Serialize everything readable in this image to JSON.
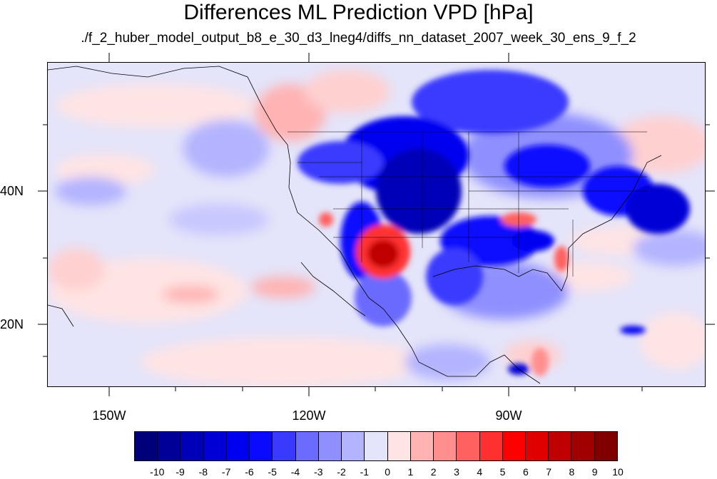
{
  "title": "Differences ML Prediction VPD [hPa]",
  "subtitle": "./f_2_huber_model_output_b8_e_30_d3_lneg4/diffs_nn_dataset_2007_week_30_ens_9_f_2",
  "map": {
    "projection": "cylindrical-equidistant",
    "lon_range": [
      -160,
      -62
    ],
    "lat_range": [
      11,
      60
    ],
    "lon_labels": [
      "150W",
      "120W",
      "90W"
    ],
    "lat_labels": [
      "40N",
      "20N"
    ],
    "features": [
      "coastlines",
      "us-state-borders",
      "country-borders"
    ]
  },
  "colorbar": {
    "labels": [
      "-10",
      "-9",
      "-8",
      "-7",
      "-6",
      "-5",
      "-4",
      "-3",
      "-2",
      "-1",
      "0",
      "1",
      "2",
      "3",
      "4",
      "5",
      "6",
      "7",
      "8",
      "9",
      "10"
    ],
    "colors": [
      "#00007a",
      "#000099",
      "#0000b8",
      "#0000d6",
      "#0000f0",
      "#0a0aff",
      "#3a3aff",
      "#6b6bff",
      "#8f8fff",
      "#b3b3ff",
      "#e4e4fa",
      "#ffe4e4",
      "#ffb3b3",
      "#ff8f8f",
      "#ff6060",
      "#ff3030",
      "#ff0000",
      "#e00000",
      "#c00000",
      "#a00000",
      "#800000"
    ]
  },
  "legend_placement": "bottom"
}
